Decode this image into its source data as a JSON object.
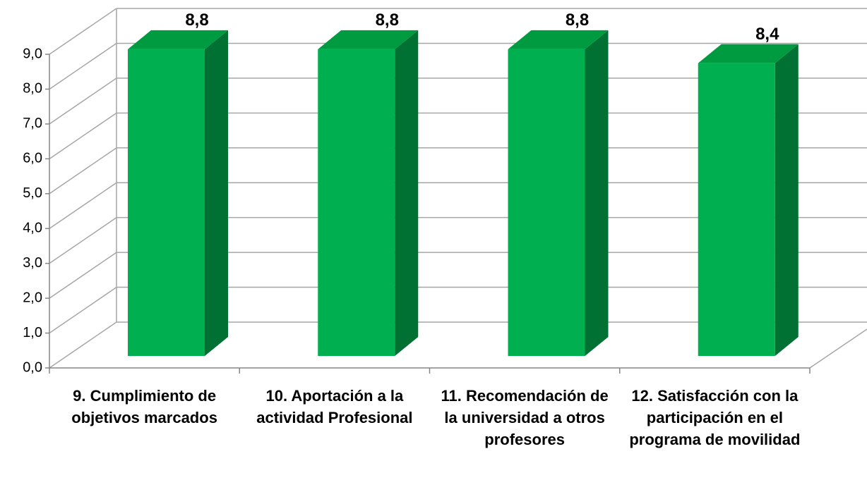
{
  "chart_data": {
    "type": "bar3d",
    "categories": [
      "9. Cumplimiento de objetivos marcados",
      "10. Aportación a la actividad Profesional",
      "11. Recomendación de la universidad a otros  profesores",
      "12. Satisfacción con la participación en el programa de movilidad"
    ],
    "values": [
      8.8,
      8.8,
      8.8,
      8.4
    ],
    "value_labels": [
      "8,8",
      "8,8",
      "8,8",
      "8,4"
    ],
    "color": "#00b050",
    "ylim": [
      0,
      9
    ],
    "yticks": [
      {
        "value": 0,
        "label": "0,0"
      },
      {
        "value": 1,
        "label": "1,0"
      },
      {
        "value": 2,
        "label": "2,0"
      },
      {
        "value": 3,
        "label": "3,0"
      },
      {
        "value": 4,
        "label": "4,0"
      },
      {
        "value": 5,
        "label": "5,0"
      },
      {
        "value": 6,
        "label": "6,0"
      },
      {
        "value": 7,
        "label": "7,0"
      },
      {
        "value": 8,
        "label": "8,0"
      },
      {
        "value": 9,
        "label": "9,0"
      }
    ],
    "grid": true
  }
}
